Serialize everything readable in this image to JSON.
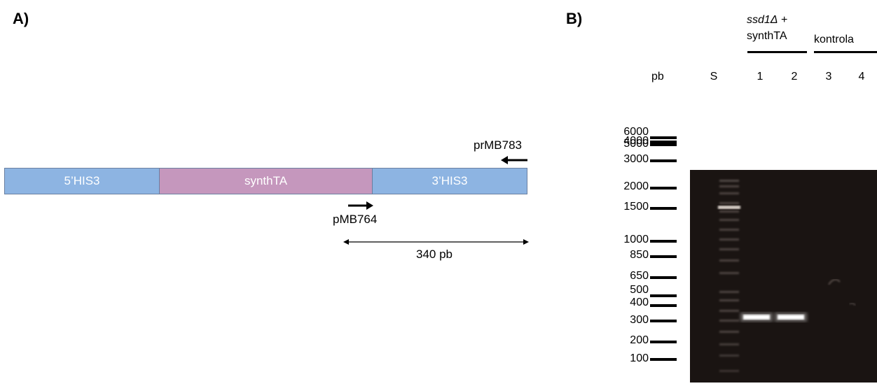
{
  "panelA": {
    "label": "A)",
    "segments": [
      "5’HIS3",
      "synthTA",
      "3’HIS3"
    ],
    "colors": {
      "his3": "#8db4e2",
      "synthTA": "#c597bd"
    },
    "primer_reverse": "prMB783",
    "primer_forward": "pMB764",
    "product_size": "340 pb"
  },
  "panelB": {
    "label": "B)",
    "group1_label_italic": "ssd1Δ",
    "group1_label_plus": " +",
    "group1_label_line2": "synthTA",
    "group2_label": "kontrola",
    "unit_header": "pb",
    "standard_lane": "S",
    "lanes": [
      "1",
      "2",
      "3",
      "4"
    ],
    "ladder": [
      "6000",
      "5000",
      "4000",
      "3000",
      "2000",
      "1500",
      "1000",
      "850",
      "650",
      "500",
      "400",
      "300",
      "200",
      "100"
    ]
  }
}
